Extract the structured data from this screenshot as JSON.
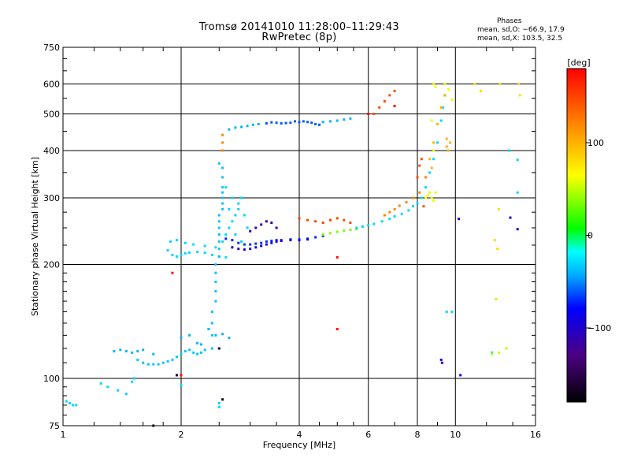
{
  "header": {
    "title_line1": "Tromsø 20141010 11:28:00–11:29:43",
    "title_line2": "RwPretec (8p)",
    "phases_label": "Phases",
    "stat_line0": "mean, sd,O: −66.9, 17.9",
    "stat_line1": "mean, sd,X: 103.5, 32.5"
  },
  "colorbar": {
    "title": "[deg]",
    "range": [
      -180,
      180
    ],
    "ticks": [
      {
        "value": 100,
        "label": "100"
      },
      {
        "value": 0,
        "label": "0"
      },
      {
        "value": -100,
        "label": "−100"
      }
    ]
  },
  "chart_data": {
    "type": "scatter",
    "title": "Tromsø 20141010 11:28:00–11:29:43",
    "subtitle": "RwPretec (8p)",
    "xlabel": "Frequency [MHz]",
    "ylabel": "Stationary phase Virtual Height [km]",
    "x_scale": "log",
    "y_scale": "log",
    "xlim": [
      1,
      16
    ],
    "ylim": [
      75,
      750
    ],
    "x_ticks": [
      {
        "value": 1,
        "label": "1"
      },
      {
        "value": 2,
        "label": "2"
      },
      {
        "value": 4,
        "label": "4"
      },
      {
        "value": 6,
        "label": "6"
      },
      {
        "value": 8,
        "label": "8"
      },
      {
        "value": 10,
        "label": "10"
      },
      {
        "value": 16,
        "label": "16"
      }
    ],
    "y_ticks": [
      {
        "value": 75,
        "label": "75"
      },
      {
        "value": 100,
        "label": "100"
      },
      {
        "value": 200,
        "label": "200"
      },
      {
        "value": 300,
        "label": "300"
      },
      {
        "value": 400,
        "label": "400"
      },
      {
        "value": 500,
        "label": "500"
      },
      {
        "value": 600,
        "label": "600"
      },
      {
        "value": 750,
        "label": "750"
      }
    ],
    "grid": true,
    "color_encoding": "phase [deg]",
    "traces": [
      {
        "phase": -30,
        "points": [
          [
            1.85,
            218
          ],
          [
            1.9,
            212
          ],
          [
            1.95,
            210
          ],
          [
            2.0,
            212
          ],
          [
            2.05,
            214
          ],
          [
            2.1,
            215
          ],
          [
            2.2,
            216
          ],
          [
            2.3,
            215
          ],
          [
            2.4,
            212
          ],
          [
            2.5,
            210
          ],
          [
            2.6,
            209
          ],
          [
            1.88,
            230
          ],
          [
            1.95,
            232
          ],
          [
            2.05,
            228
          ],
          [
            2.15,
            226
          ],
          [
            2.3,
            224
          ],
          [
            2.45,
            222
          ]
        ]
      },
      {
        "phase": -35,
        "points": [
          [
            1.55,
            112
          ],
          [
            1.6,
            110
          ],
          [
            1.65,
            109
          ],
          [
            1.7,
            109
          ],
          [
            1.75,
            109
          ],
          [
            1.8,
            110
          ],
          [
            1.85,
            111
          ],
          [
            1.9,
            112
          ],
          [
            1.95,
            114
          ],
          [
            2.0,
            116
          ],
          [
            2.05,
            118
          ],
          [
            2.1,
            119
          ],
          [
            2.15,
            117
          ],
          [
            2.2,
            116
          ],
          [
            2.25,
            117
          ],
          [
            2.3,
            119
          ]
        ]
      },
      {
        "phase": -40,
        "points": [
          [
            1.35,
            118
          ],
          [
            1.4,
            119
          ],
          [
            1.45,
            118
          ],
          [
            1.5,
            117
          ],
          [
            1.55,
            118
          ],
          [
            1.6,
            119
          ],
          [
            1.7,
            116
          ],
          [
            2.0,
            128
          ],
          [
            2.1,
            130
          ],
          [
            2.2,
            124
          ],
          [
            2.25,
            123
          ],
          [
            2.35,
            135
          ],
          [
            2.45,
            130
          ],
          [
            2.55,
            131
          ],
          [
            2.65,
            128
          ]
        ]
      },
      {
        "phase": -30,
        "points": [
          [
            1.02,
            87
          ],
          [
            1.04,
            86
          ],
          [
            1.06,
            85
          ],
          [
            1.08,
            85
          ],
          [
            1.25,
            97
          ],
          [
            1.3,
            95
          ],
          [
            1.38,
            93
          ],
          [
            1.45,
            91
          ],
          [
            1.5,
            98
          ],
          [
            1.52,
            100
          ],
          [
            2.0,
            96
          ],
          [
            2.5,
            84
          ],
          [
            2.5,
            86
          ]
        ]
      },
      {
        "phase": -35,
        "points": [
          [
            2.4,
            120
          ],
          [
            2.4,
            130
          ],
          [
            2.4,
            140
          ],
          [
            2.4,
            150
          ],
          [
            2.45,
            160
          ],
          [
            2.45,
            170
          ],
          [
            2.45,
            180
          ],
          [
            2.45,
            190
          ],
          [
            2.45,
            200
          ],
          [
            2.5,
            210
          ],
          [
            2.5,
            220
          ],
          [
            2.5,
            230
          ],
          [
            2.5,
            240
          ],
          [
            2.5,
            250
          ],
          [
            2.5,
            260
          ],
          [
            2.5,
            270
          ],
          [
            2.55,
            280
          ],
          [
            2.55,
            290
          ],
          [
            2.55,
            300
          ],
          [
            2.55,
            310
          ],
          [
            2.55,
            320
          ],
          [
            2.55,
            340
          ],
          [
            2.55,
            360
          ],
          [
            2.5,
            370
          ]
        ]
      },
      {
        "phase": -30,
        "points": [
          [
            2.55,
            230
          ],
          [
            2.6,
            240
          ],
          [
            2.65,
            250
          ],
          [
            2.7,
            260
          ],
          [
            2.75,
            270
          ],
          [
            2.8,
            280
          ],
          [
            2.85,
            300
          ],
          [
            2.9,
            270
          ],
          [
            2.95,
            250
          ],
          [
            2.6,
            320
          ],
          [
            2.7,
            300
          ],
          [
            2.8,
            290
          ],
          [
            2.65,
            280
          ],
          [
            2.75,
            240
          ],
          [
            2.85,
            230
          ]
        ]
      },
      {
        "phase": -70,
        "points": [
          [
            2.6,
            234
          ],
          [
            2.7,
            232
          ],
          [
            2.8,
            228
          ],
          [
            2.9,
            226
          ],
          [
            3.0,
            226
          ],
          [
            3.1,
            227
          ],
          [
            3.2,
            228
          ],
          [
            3.3,
            230
          ],
          [
            3.4,
            231
          ],
          [
            3.5,
            232
          ],
          [
            3.6,
            232
          ],
          [
            3.8,
            233
          ],
          [
            4.0,
            233
          ],
          [
            4.2,
            234
          ],
          [
            4.4,
            236
          ],
          [
            4.6,
            238
          ]
        ]
      },
      {
        "phase": -95,
        "points": [
          [
            2.7,
            222
          ],
          [
            2.8,
            220
          ],
          [
            2.9,
            219
          ],
          [
            3.0,
            220
          ],
          [
            3.1,
            222
          ],
          [
            3.2,
            224
          ],
          [
            3.3,
            226
          ],
          [
            3.4,
            228
          ],
          [
            3.5,
            230
          ],
          [
            3.6,
            231
          ],
          [
            3.8,
            232
          ],
          [
            4.0,
            232
          ],
          [
            4.2,
            233
          ]
        ]
      },
      {
        "phase": -115,
        "points": [
          [
            3.0,
            245
          ],
          [
            3.1,
            250
          ],
          [
            3.2,
            255
          ],
          [
            3.3,
            260
          ],
          [
            3.4,
            258
          ],
          [
            3.5,
            250
          ]
        ]
      },
      {
        "phase": 35,
        "points": [
          [
            4.6,
            240
          ],
          [
            4.8,
            242
          ],
          [
            5.0,
            244
          ],
          [
            5.2,
            246
          ],
          [
            5.4,
            247
          ],
          [
            5.6,
            248
          ]
        ]
      },
      {
        "phase": -30,
        "points": [
          [
            5.6,
            250
          ],
          [
            5.8,
            252
          ],
          [
            6.0,
            254
          ],
          [
            6.2,
            256
          ],
          [
            6.5,
            260
          ],
          [
            6.8,
            264
          ],
          [
            7.0,
            268
          ],
          [
            7.3,
            272
          ],
          [
            7.6,
            278
          ],
          [
            7.8,
            285
          ],
          [
            8.0,
            290
          ],
          [
            8.2,
            300
          ],
          [
            8.4,
            320
          ],
          [
            8.6,
            350
          ],
          [
            8.8,
            380
          ],
          [
            9.0,
            420
          ],
          [
            9.2,
            480
          ],
          [
            9.3,
            520
          ],
          [
            9.4,
            560
          ]
        ]
      },
      {
        "phase": 120,
        "points": [
          [
            6.6,
            270
          ],
          [
            6.8,
            275
          ],
          [
            7.0,
            280
          ],
          [
            7.2,
            286
          ],
          [
            7.5,
            292
          ],
          [
            7.8,
            300
          ],
          [
            8.1,
            310
          ],
          [
            8.4,
            340
          ]
        ]
      },
      {
        "phase": 150,
        "points": [
          [
            4.0,
            265
          ],
          [
            4.2,
            262
          ],
          [
            4.4,
            260
          ],
          [
            4.6,
            258
          ],
          [
            4.8,
            262
          ],
          [
            5.0,
            265
          ],
          [
            5.2,
            262
          ],
          [
            5.4,
            258
          ]
        ]
      },
      {
        "phase": 100,
        "points": [
          [
            8.6,
            380
          ],
          [
            8.8,
            420
          ],
          [
            9.0,
            470
          ],
          [
            9.2,
            520
          ],
          [
            9.4,
            560
          ],
          [
            9.5,
            410
          ],
          [
            9.5,
            430
          ],
          [
            9.6,
            400
          ],
          [
            9.7,
            420
          ],
          [
            8.7,
            360
          ]
        ]
      },
      {
        "phase": 60,
        "points": [
          [
            8.8,
            400
          ],
          [
            8.7,
            480
          ],
          [
            8.8,
            600
          ],
          [
            8.9,
            590
          ],
          [
            9.4,
            600
          ],
          [
            9.6,
            580
          ],
          [
            9.8,
            545
          ]
        ]
      },
      {
        "phase": -60,
        "points": [
          [
            3.3,
            472
          ],
          [
            3.4,
            475
          ],
          [
            3.5,
            474
          ],
          [
            3.6,
            472
          ],
          [
            3.7,
            473
          ],
          [
            3.8,
            474
          ],
          [
            3.9,
            478
          ],
          [
            4.0,
            476
          ],
          [
            4.1,
            478
          ],
          [
            4.2,
            476
          ],
          [
            4.3,
            474
          ],
          [
            4.4,
            470
          ],
          [
            4.5,
            468
          ]
        ]
      },
      {
        "phase": -40,
        "points": [
          [
            2.65,
            455
          ],
          [
            2.75,
            460
          ],
          [
            2.85,
            462
          ],
          [
            2.95,
            465
          ],
          [
            3.05,
            468
          ],
          [
            3.15,
            470
          ],
          [
            4.6,
            476
          ],
          [
            4.8,
            478
          ],
          [
            5.0,
            480
          ],
          [
            5.2,
            483
          ],
          [
            5.4,
            486
          ]
        ]
      },
      {
        "phase": 120,
        "points": [
          [
            2.55,
            420
          ],
          [
            2.55,
            400
          ],
          [
            2.55,
            440
          ]
        ]
      },
      {
        "phase": 145,
        "points": [
          [
            6.2,
            500
          ],
          [
            6.4,
            520
          ],
          [
            6.6,
            540
          ],
          [
            6.8,
            560
          ],
          [
            7.0,
            575
          ],
          [
            8.3,
            285
          ],
          [
            8.0,
            340
          ],
          [
            8.1,
            365
          ],
          [
            8.2,
            380
          ]
        ]
      },
      {
        "phase": 60,
        "points": [
          [
            8.4,
            300
          ],
          [
            8.5,
            305
          ],
          [
            8.6,
            310
          ],
          [
            8.7,
            300
          ],
          [
            8.8,
            295
          ],
          [
            8.9,
            310
          ]
        ]
      },
      {
        "phase": 80,
        "points": [
          [
            11.2,
            600
          ],
          [
            11.6,
            575
          ],
          [
            12.8,
            220
          ],
          [
            12.6,
            232
          ],
          [
            13.0,
            600
          ],
          [
            12.9,
            280
          ],
          [
            14.5,
            600
          ],
          [
            14.6,
            560
          ]
        ]
      },
      {
        "phase": -30,
        "points": [
          [
            13.7,
            400
          ],
          [
            14.4,
            378
          ],
          [
            14.4,
            310
          ],
          [
            9.8,
            150
          ],
          [
            12.4,
            117
          ],
          [
            9.5,
            150
          ]
        ]
      },
      {
        "phase": 50,
        "points": [
          [
            12.7,
            162
          ],
          [
            12.9,
            117
          ],
          [
            13.5,
            120
          ],
          [
            12.4,
            116
          ]
        ]
      },
      {
        "phase": -100,
        "points": [
          [
            10.3,
            102
          ],
          [
            9.2,
            112
          ],
          [
            9.25,
            110
          ],
          [
            10.2,
            264
          ],
          [
            13.8,
            266
          ],
          [
            14.4,
            248
          ]
        ]
      },
      {
        "phase": -165,
        "points": [
          [
            1.7,
            75
          ],
          [
            2.55,
            88
          ],
          [
            2.5,
            120
          ],
          [
            1.95,
            102
          ]
        ]
      },
      {
        "phase": 175,
        "points": [
          [
            1.9,
            190
          ],
          [
            2.0,
            102
          ],
          [
            5.0,
            209
          ],
          [
            5.0,
            135
          ],
          [
            6.0,
            500
          ],
          [
            7.0,
            525
          ]
        ]
      }
    ]
  }
}
